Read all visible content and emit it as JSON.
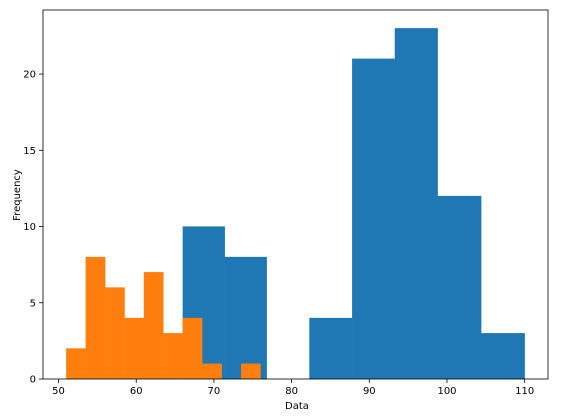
{
  "chart_data": {
    "type": "bar",
    "title": "",
    "xlabel": "Data",
    "ylabel": "Frequency",
    "xlim": [
      48,
      113
    ],
    "ylim": [
      0,
      24.2
    ],
    "x_ticks": [
      50,
      60,
      70,
      80,
      90,
      100,
      110
    ],
    "y_ticks": [
      0,
      5,
      10,
      15,
      20
    ],
    "grid": false,
    "legend": "none",
    "series": [
      {
        "color": "#1f77b4",
        "bins": [
          {
            "x0": 66.0,
            "x1": 71.4,
            "count": 10
          },
          {
            "x0": 71.4,
            "x1": 76.8,
            "count": 8
          },
          {
            "x0": 76.8,
            "x1": 82.3,
            "count": 0
          },
          {
            "x0": 82.3,
            "x1": 87.8,
            "count": 4
          },
          {
            "x0": 87.8,
            "x1": 93.3,
            "count": 21
          },
          {
            "x0": 93.3,
            "x1": 98.8,
            "count": 23
          },
          {
            "x0": 98.8,
            "x1": 104.4,
            "count": 12
          },
          {
            "x0": 104.4,
            "x1": 110.0,
            "count": 3
          }
        ]
      },
      {
        "color": "#ff7f0e",
        "bins": [
          {
            "x0": 51.0,
            "x1": 53.5,
            "count": 2
          },
          {
            "x0": 53.5,
            "x1": 56.0,
            "count": 8
          },
          {
            "x0": 56.0,
            "x1": 58.5,
            "count": 6
          },
          {
            "x0": 58.5,
            "x1": 61.0,
            "count": 4
          },
          {
            "x0": 61.0,
            "x1": 63.5,
            "count": 7
          },
          {
            "x0": 63.5,
            "x1": 66.0,
            "count": 3
          },
          {
            "x0": 66.0,
            "x1": 68.5,
            "count": 4
          },
          {
            "x0": 68.5,
            "x1": 71.0,
            "count": 1
          },
          {
            "x0": 71.0,
            "x1": 73.5,
            "count": 0
          },
          {
            "x0": 73.5,
            "x1": 76.0,
            "count": 1
          }
        ]
      }
    ]
  }
}
